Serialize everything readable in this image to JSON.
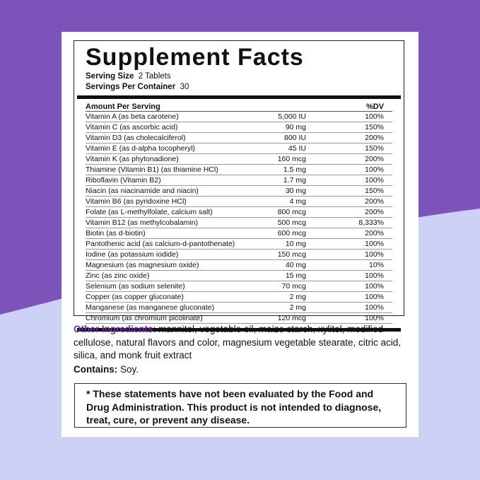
{
  "header": {
    "title": "Supplement Facts",
    "serving_size_label": "Serving Size",
    "serving_size": "2 Tablets",
    "servings_label": "Servings Per Container",
    "servings": "30"
  },
  "table": {
    "header": [
      "Amount Per Serving",
      "%DV"
    ],
    "rows": [
      [
        "Vitamin A (as beta carotene)",
        "5,000 IU",
        "100%"
      ],
      [
        "Vitamin C (as ascorbic acid)",
        "90 mg",
        "150%"
      ],
      [
        "Vitamin D3 (as cholecalciferol)",
        "800 IU",
        "200%"
      ],
      [
        "Vitamin E (as d-alpha tocopheryl)",
        "45 IU",
        "150%"
      ],
      [
        "Vitamin K (as phytonadione)",
        "160 mcg",
        "200%"
      ],
      [
        "Thiamine (Vitamin B1) (as thiamine HCl)",
        "1.5 mg",
        "100%"
      ],
      [
        "Riboflavin (Vitamin B2)",
        "1.7 mg",
        "100%"
      ],
      [
        "Niacin (as niacinamide and niacin)",
        "30 mg",
        "150%"
      ],
      [
        "Vitamin B6 (as pyridoxine HCl)",
        "4 mg",
        "200%"
      ],
      [
        "Folate (as L-methylfolate, calcium salt)",
        "800 mcg",
        "200%"
      ],
      [
        "Vitamin B12 (as methylcobalamin)",
        "500 mcg",
        "8,333%"
      ],
      [
        "Biotin (as d-biotin)",
        "600 mcg",
        "200%"
      ],
      [
        "Pantothenic acid (as calcium-d-pantothenate)",
        "10 mg",
        "100%"
      ],
      [
        "Iodine (as potassium iodide)",
        "150 mcg",
        "100%"
      ],
      [
        "Magnesium (as magnesium oxide)",
        "40 mg",
        "10%"
      ],
      [
        "Zinc (as zinc oxide)",
        "15 mg",
        "100%"
      ],
      [
        "Selenium (as sodium selenite)",
        "70 mcg",
        "100%"
      ],
      [
        "Copper (as copper gluconate)",
        "2 mg",
        "100%"
      ],
      [
        "Manganese (as manganese gluconate)",
        "2 mg",
        "100%"
      ],
      [
        "Chromium (as chromium picolinate)",
        "120 mcg",
        "100%"
      ]
    ]
  },
  "other_ingredients": {
    "label": "Other Ingredients",
    "text": ": mannitol, vegetable oil, maize starch, xylitol, modified cellulose, natural flavors and color, magnesium vegetable stearate, citric acid, silica, and monk fruit extract"
  },
  "contains": {
    "label": "Contains:",
    "text": "Soy."
  },
  "disclaimer": "* These statements have not been evaluated by the Food and Drug Administration. This product is not intended to diagnose, treat, cure, or prevent any disease."
}
